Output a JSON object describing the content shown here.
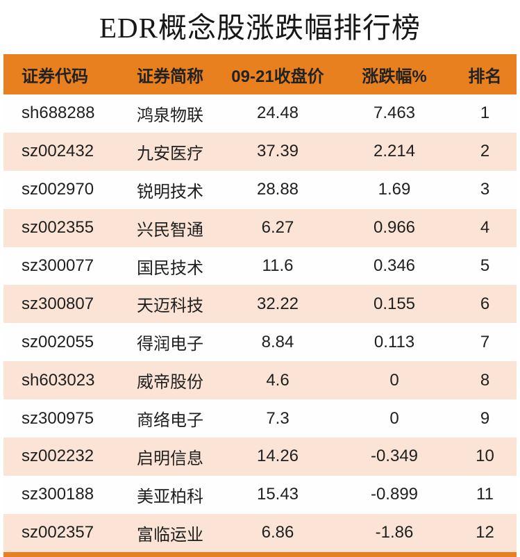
{
  "colors": {
    "header_bg": "#E8801F",
    "row_bg": "#FEFEFE",
    "row_alt_bg": "#FBE4D5",
    "footer_bar": "#E8801F",
    "title_text": "#171717",
    "body_text": "#1F1F1F"
  },
  "chart_data": {
    "type": "table",
    "title": "EDR概念股涨跌幅排行榜",
    "columns": [
      "证券代码",
      "证券简称",
      "09-21收盘价",
      "涨跌幅%",
      "排名"
    ],
    "rows": [
      [
        "sh688288",
        "鸿泉物联",
        "24.48",
        "7.463",
        "1"
      ],
      [
        "sz002432",
        "九安医疗",
        "37.39",
        "2.214",
        "2"
      ],
      [
        "sz002970",
        "锐明技术",
        "28.88",
        "1.69",
        "3"
      ],
      [
        "sz002355",
        "兴民智通",
        "6.27",
        "0.966",
        "4"
      ],
      [
        "sz300077",
        "国民技术",
        "11.6",
        "0.346",
        "5"
      ],
      [
        "sz300807",
        "天迈科技",
        "32.22",
        "0.155",
        "6"
      ],
      [
        "sz002055",
        "得润电子",
        "8.84",
        "0.113",
        "7"
      ],
      [
        "sh603023",
        "威帝股份",
        "4.6",
        "0",
        "8"
      ],
      [
        "sz300975",
        "商络电子",
        "7.3",
        "0",
        "9"
      ],
      [
        "sz002232",
        "启明信息",
        "14.26",
        "-0.349",
        "10"
      ],
      [
        "sz300188",
        "美亚柏科",
        "15.43",
        "-0.899",
        "11"
      ],
      [
        "sz002357",
        "富临运业",
        "6.86",
        "-1.86",
        "12"
      ]
    ]
  }
}
